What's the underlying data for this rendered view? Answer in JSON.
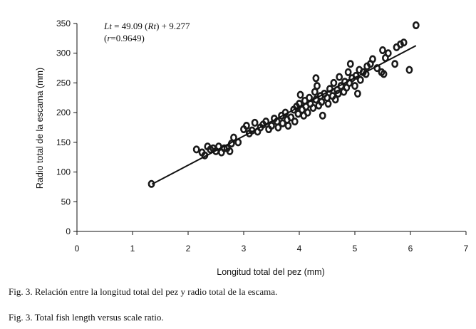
{
  "chart_data": {
    "type": "scatter",
    "xlabel": "Longitud total del pez (mm)",
    "ylabel": "Radio total de la escama (mm)",
    "xlim": [
      0,
      7
    ],
    "ylim": [
      0,
      350
    ],
    "x_ticks": [
      0,
      1,
      2,
      3,
      4,
      5,
      6,
      7
    ],
    "y_ticks": [
      0,
      50,
      100,
      150,
      200,
      250,
      300,
      350
    ],
    "grid": false,
    "legend": "none",
    "annotation": {
      "line1_var_a": "Lt",
      "line1_mid": " = 49.09 (",
      "line1_var_b": "Rt",
      "line1_end": ") + 9.277",
      "line2_open": "(",
      "line2_var": "r",
      "line2_end": "=0.9649)"
    },
    "regression": {
      "slope": 49.09,
      "intercept": 9.277,
      "x_range": [
        1.35,
        6.1
      ]
    },
    "series": [
      {
        "marker_color": "#1a1a1a",
        "points": [
          [
            1.34,
            80
          ],
          [
            2.15,
            138
          ],
          [
            2.25,
            133
          ],
          [
            2.3,
            128
          ],
          [
            2.35,
            143
          ],
          [
            2.4,
            138
          ],
          [
            2.45,
            140
          ],
          [
            2.5,
            135
          ],
          [
            2.55,
            143
          ],
          [
            2.6,
            133
          ],
          [
            2.65,
            140
          ],
          [
            2.7,
            140
          ],
          [
            2.75,
            135
          ],
          [
            2.78,
            148
          ],
          [
            2.82,
            158
          ],
          [
            2.9,
            150
          ],
          [
            3.0,
            172
          ],
          [
            3.05,
            178
          ],
          [
            3.1,
            165
          ],
          [
            3.15,
            170
          ],
          [
            3.2,
            183
          ],
          [
            3.25,
            168
          ],
          [
            3.3,
            175
          ],
          [
            3.35,
            180
          ],
          [
            3.4,
            185
          ],
          [
            3.45,
            172
          ],
          [
            3.5,
            178
          ],
          [
            3.55,
            190
          ],
          [
            3.6,
            185
          ],
          [
            3.62,
            175
          ],
          [
            3.68,
            195
          ],
          [
            3.7,
            182
          ],
          [
            3.75,
            200
          ],
          [
            3.78,
            188
          ],
          [
            3.8,
            178
          ],
          [
            3.85,
            192
          ],
          [
            3.9,
            205
          ],
          [
            3.92,
            185
          ],
          [
            3.95,
            210
          ],
          [
            3.98,
            198
          ],
          [
            4.0,
            215
          ],
          [
            4.02,
            230
          ],
          [
            4.05,
            205
          ],
          [
            4.08,
            195
          ],
          [
            4.1,
            220
          ],
          [
            4.12,
            210
          ],
          [
            4.15,
            200
          ],
          [
            4.18,
            225
          ],
          [
            4.2,
            215
          ],
          [
            4.25,
            208
          ],
          [
            4.28,
            235
          ],
          [
            4.3,
            222
          ],
          [
            4.3,
            258
          ],
          [
            4.32,
            245
          ],
          [
            4.35,
            212
          ],
          [
            4.38,
            228
          ],
          [
            4.4,
            218
          ],
          [
            4.42,
            195
          ],
          [
            4.45,
            232
          ],
          [
            4.5,
            225
          ],
          [
            4.52,
            215
          ],
          [
            4.55,
            240
          ],
          [
            4.6,
            228
          ],
          [
            4.62,
            250
          ],
          [
            4.65,
            222
          ],
          [
            4.68,
            238
          ],
          [
            4.7,
            232
          ],
          [
            4.72,
            260
          ],
          [
            4.75,
            245
          ],
          [
            4.8,
            235
          ],
          [
            4.82,
            252
          ],
          [
            4.85,
            242
          ],
          [
            4.88,
            268
          ],
          [
            4.9,
            250
          ],
          [
            4.92,
            282
          ],
          [
            4.95,
            258
          ],
          [
            5.0,
            245
          ],
          [
            5.02,
            262
          ],
          [
            5.05,
            232
          ],
          [
            5.08,
            272
          ],
          [
            5.1,
            255
          ],
          [
            5.15,
            268
          ],
          [
            5.2,
            265
          ],
          [
            5.22,
            278
          ],
          [
            5.28,
            282
          ],
          [
            5.32,
            290
          ],
          [
            5.4,
            275
          ],
          [
            5.48,
            268
          ],
          [
            5.5,
            305
          ],
          [
            5.52,
            265
          ],
          [
            5.55,
            292
          ],
          [
            5.6,
            300
          ],
          [
            5.72,
            282
          ],
          [
            5.75,
            310
          ],
          [
            5.82,
            315
          ],
          [
            5.88,
            318
          ],
          [
            5.98,
            272
          ],
          [
            6.1,
            347
          ]
        ]
      }
    ]
  },
  "captions": {
    "es": "Fig. 3. Relación entre la longitud total del pez y radio total de la escama.",
    "en": "Fig. 3. Total fish length versus scale ratio."
  }
}
